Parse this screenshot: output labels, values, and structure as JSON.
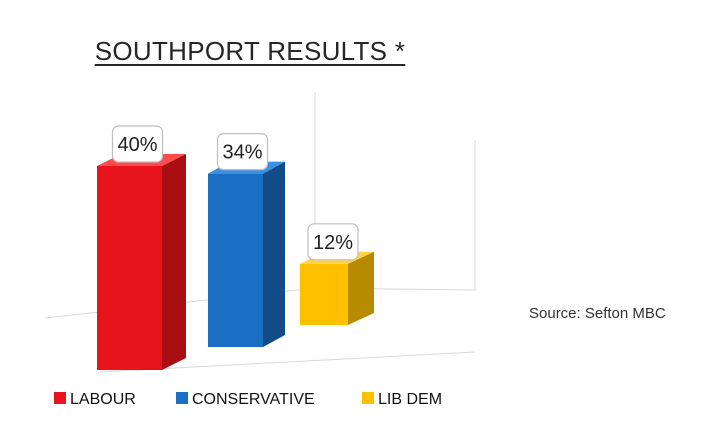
{
  "chart_data": {
    "type": "bar",
    "title": "SOUTHPORT RESULTS *",
    "categories": [
      "LABOUR",
      "CONSERVATIVE",
      "LIB DEM"
    ],
    "values": [
      40,
      34,
      12
    ],
    "value_labels": [
      "40%",
      "34%",
      "12%"
    ],
    "unit": "%",
    "colors": {
      "LABOUR": {
        "front": "#e8141c",
        "side": "#a80e12",
        "top": "#ff4a4e"
      },
      "CONSERVATIVE": {
        "front": "#1a6fc4",
        "side": "#124c88",
        "top": "#3f8fe0"
      },
      "LIB DEM": {
        "front": "#ffc000",
        "side": "#b88a00",
        "top": "#ffd24a"
      }
    },
    "legend_position": "bottom",
    "grid": false,
    "style": "3d-column"
  },
  "footnote": "Source: Sefton MBC"
}
